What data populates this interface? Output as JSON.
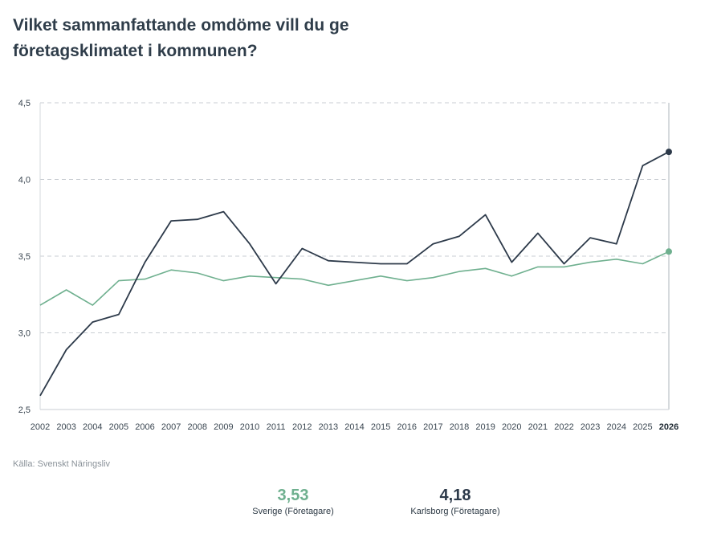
{
  "title": "Vilket sammanfattande omdöme vill du ge företagsklimatet i kommunen?",
  "source": "Källa: Svenskt Näringsliv",
  "chart_data": {
    "type": "line",
    "title": "Vilket sammanfattande omdöme vill du ge företagsklimatet i kommunen?",
    "x": [
      2002,
      2003,
      2004,
      2005,
      2006,
      2007,
      2008,
      2009,
      2010,
      2011,
      2012,
      2013,
      2014,
      2015,
      2016,
      2017,
      2018,
      2019,
      2020,
      2021,
      2022,
      2023,
      2024,
      2025,
      2026
    ],
    "x_tick_labels": [
      "2002",
      "2003",
      "2004",
      "2005",
      "2006",
      "2007",
      "2008",
      "2009",
      "2010",
      "2011",
      "2012",
      "2013",
      "2014",
      "2015",
      "2016",
      "2017",
      "2018",
      "2019",
      "2020",
      "2021",
      "2022",
      "2023",
      "2024",
      "2025",
      "2026"
    ],
    "highlight_tick": "2026",
    "y_tick_labels": [
      "2,5",
      "3,0",
      "3,5",
      "4,0",
      "4,5"
    ],
    "y_ticks": [
      2.5,
      3.0,
      3.5,
      4.0,
      4.5
    ],
    "ylim": [
      2.5,
      4.5
    ],
    "grid": "horizontal dashed",
    "series": [
      {
        "name": "Karlsborg (Företagare)",
        "color": "#2d3a4a",
        "values": [
          2.59,
          2.89,
          3.07,
          3.12,
          3.46,
          3.73,
          3.74,
          3.79,
          3.58,
          3.32,
          3.55,
          3.47,
          3.46,
          3.45,
          3.45,
          3.58,
          3.63,
          3.77,
          3.46,
          3.65,
          3.45,
          3.62,
          3.58,
          4.09,
          4.18
        ]
      },
      {
        "name": "Sverige (Företagare)",
        "color": "#6fb08f",
        "values": [
          3.18,
          3.28,
          3.18,
          3.34,
          3.35,
          3.41,
          3.39,
          3.34,
          3.37,
          3.36,
          3.35,
          3.31,
          3.34,
          3.37,
          3.34,
          3.36,
          3.4,
          3.42,
          3.37,
          3.43,
          3.43,
          3.46,
          3.48,
          3.45,
          3.53
        ]
      }
    ]
  },
  "summary": {
    "sverige": {
      "value": "3,53",
      "label": "Sverige (Företagare)",
      "color": "#6fb08f"
    },
    "karlsborg": {
      "value": "4,18",
      "label": "Karlsborg (Företagare)",
      "color": "#2d3a4a"
    }
  }
}
